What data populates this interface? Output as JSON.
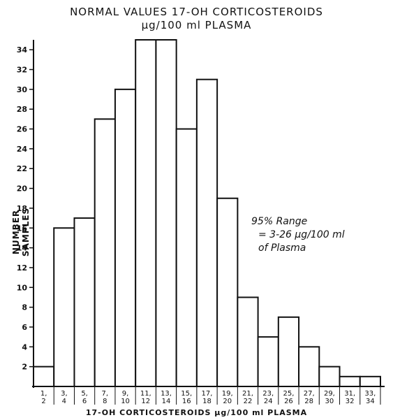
{
  "chart_data": {
    "type": "bar",
    "title": "NORMAL VALUES 17-OH CORTICOSTEROIDS",
    "subtitle": "μg/100 ml PLASMA",
    "xlabel": "17-OH CORTICOSTEROIDS μg/100 ml PLASMA",
    "ylabel": "NUMBER SAMPLES",
    "categories": [
      [
        "1,",
        "2"
      ],
      [
        "3,",
        "4"
      ],
      [
        "5,",
        "6"
      ],
      [
        "7,",
        "8"
      ],
      [
        "9,",
        "10"
      ],
      [
        "11,",
        "12"
      ],
      [
        "13,",
        "14"
      ],
      [
        "15,",
        "16"
      ],
      [
        "17,",
        "18"
      ],
      [
        "19,",
        "20"
      ],
      [
        "21,",
        "22"
      ],
      [
        "23,",
        "24"
      ],
      [
        "25,",
        "26"
      ],
      [
        "27,",
        "28"
      ],
      [
        "29,",
        "30"
      ],
      [
        "31,",
        "32"
      ],
      [
        "33,",
        "34"
      ]
    ],
    "values": [
      2,
      16,
      17,
      27,
      30,
      35,
      35,
      26,
      31,
      19,
      9,
      5,
      7,
      4,
      2,
      1,
      1
    ],
    "yticks": [
      2,
      4,
      6,
      8,
      10,
      12,
      14,
      16,
      18,
      20,
      22,
      24,
      26,
      28,
      30,
      32,
      34
    ],
    "ylim": [
      0,
      35
    ],
    "grid": false,
    "annotation": [
      "95% Range",
      "= 3-26 μg/100 ml",
      "of Plasma"
    ],
    "colors": {
      "bar_fill": "#ffffff",
      "bar_stroke": "#111111",
      "axis": "#111111"
    }
  }
}
